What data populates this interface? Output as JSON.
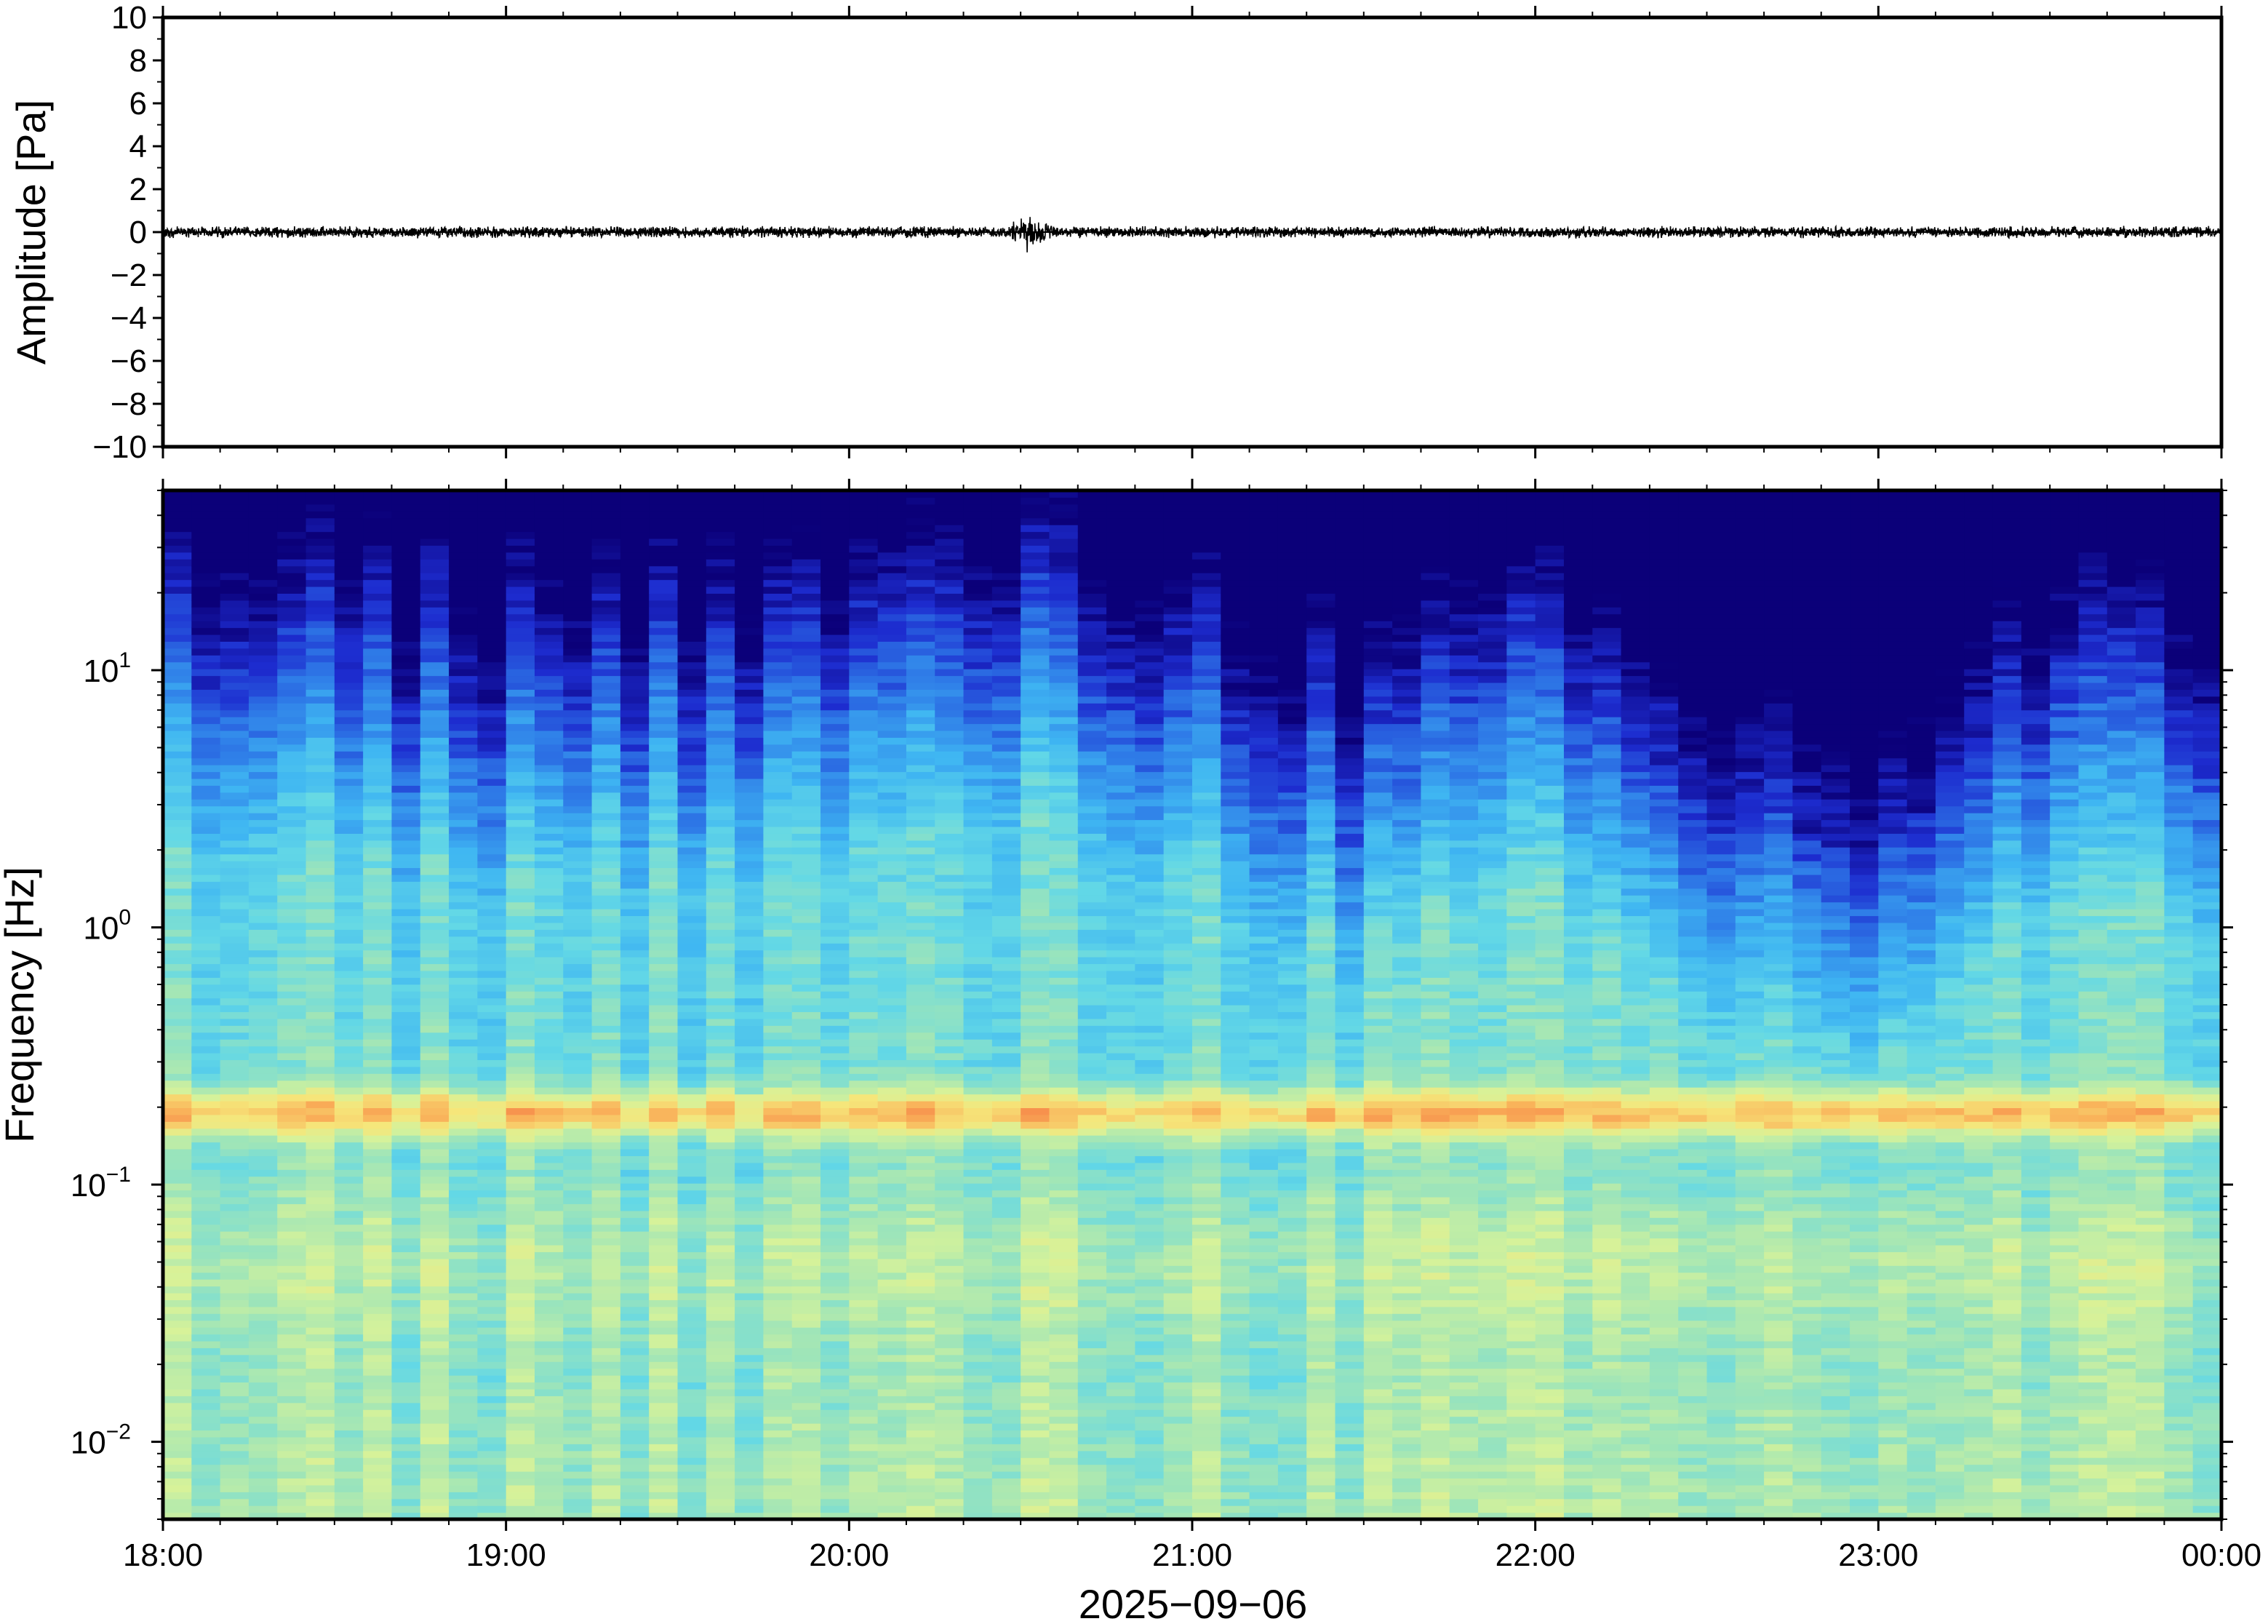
{
  "chart_data": [
    {
      "type": "line",
      "panel": "waveform",
      "ylabel": "Amplitude [Pa]",
      "ylim": [
        -10,
        10
      ],
      "yticks": [
        10,
        8,
        6,
        4,
        2,
        0,
        -2,
        -4,
        -6,
        -8,
        -10
      ],
      "ytick_labels": [
        "10",
        "8",
        "6",
        "4",
        "2",
        "0",
        "−2",
        "−4",
        "−6",
        "−8",
        "−10"
      ],
      "x_range_hours": [
        18,
        24
      ],
      "series": [
        {
          "description_values": "Near-zero infrasound pressure trace with background noise about ±0.3 Pa and a small burst near 20:32 peaking about 0.8 Pa",
          "noise_amplitude_pa": 0.3,
          "peak": {
            "time": "20:32",
            "value": 0.8
          },
          "color": "#000000"
        }
      ]
    },
    {
      "type": "heatmap",
      "panel": "spectrogram",
      "ylabel": "Frequency [Hz]",
      "yscale": "log",
      "ylim_hz": [
        0.005,
        50
      ],
      "yticks": [
        {
          "base": "10",
          "exp": "1",
          "value": 10
        },
        {
          "base": "10",
          "exp": "0",
          "value": 1
        },
        {
          "base": "10",
          "exp": "−1",
          "value": 0.1
        },
        {
          "base": "10",
          "exp": "−2",
          "value": 0.01
        }
      ],
      "xlabel": "2025−09−06",
      "xticks": [
        "18:00",
        "19:00",
        "20:00",
        "21:00",
        "22:00",
        "23:00",
        "00:00"
      ],
      "colormap": [
        "#0b0079",
        "#1d2ccf",
        "#2f7de8",
        "#3fb6f2",
        "#63d8e6",
        "#9fe5b8",
        "#d6f29a",
        "#f6e67a",
        "#f9b25a",
        "#f46b3e"
      ],
      "features": {
        "microbarom_band_hz": 0.19,
        "band_color": "#f46b3e",
        "upper_cutoff_hz_by_hour": {
          "18": 15,
          "19": 11,
          "20": 14,
          "20.5": 20,
          "21": 12,
          "21.5": 5,
          "22": 11,
          "22.5": 3,
          "23": 2,
          "23.5": 9,
          "24": 8
        }
      }
    }
  ]
}
